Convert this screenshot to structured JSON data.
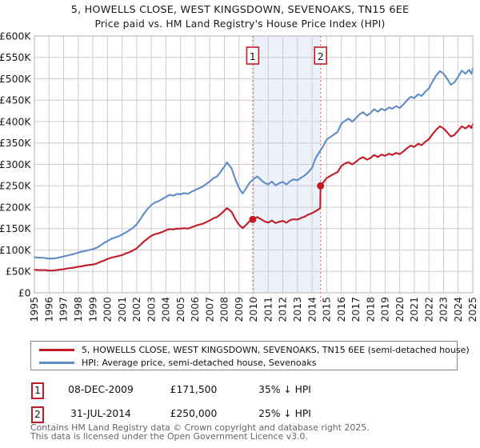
{
  "title": {
    "line1": "5, HOWELLS CLOSE, WEST KINGSDOWN, SEVENOAKS, TN15 6EE",
    "line2": "Price paid vs. HM Land Registry's House Price Index (HPI)"
  },
  "chart_data": {
    "type": "line",
    "xlim": [
      1995,
      2025
    ],
    "ylim": [
      0,
      600
    ],
    "y_unit": "GBP thousands",
    "grid": true,
    "legend_position": "bottom",
    "x_ticks": [
      1995,
      1996,
      1997,
      1998,
      1999,
      2000,
      2001,
      2002,
      2003,
      2004,
      2005,
      2006,
      2007,
      2008,
      2009,
      2010,
      2011,
      2012,
      2013,
      2014,
      2015,
      2016,
      2017,
      2018,
      2019,
      2020,
      2021,
      2022,
      2023,
      2024,
      2025
    ],
    "y_ticks": [
      {
        "v": 0,
        "label": "£0"
      },
      {
        "v": 50,
        "label": "£50K"
      },
      {
        "v": 100,
        "label": "£100K"
      },
      {
        "v": 150,
        "label": "£150K"
      },
      {
        "v": 200,
        "label": "£200K"
      },
      {
        "v": 250,
        "label": "£250K"
      },
      {
        "v": 300,
        "label": "£300K"
      },
      {
        "v": 350,
        "label": "£350K"
      },
      {
        "v": 400,
        "label": "£400K"
      },
      {
        "v": 450,
        "label": "£450K"
      },
      {
        "v": 500,
        "label": "£500K"
      },
      {
        "v": 550,
        "label": "£550K"
      },
      {
        "v": 600,
        "label": "£600K"
      }
    ],
    "colors": {
      "red": "#c21b26",
      "blue": "#5e8cc8",
      "shade": "#edf2fa",
      "dash": "#e57373",
      "grid": "#cccccc",
      "frame": "#b0b0b0",
      "tick_text": "#1a1a1a"
    },
    "series": [
      {
        "id": "price-paid",
        "name": "5, HOWELLS CLOSE, WEST KINGSDOWN, SEVENOAKS, TN15 6EE (semi-detached house)",
        "color": "#c21b26",
        "points": [
          [
            1995,
            54
          ],
          [
            1995.25,
            53
          ],
          [
            1995.5,
            53
          ],
          [
            1995.75,
            53
          ],
          [
            1996,
            52
          ],
          [
            1996.25,
            52
          ],
          [
            1996.5,
            53
          ],
          [
            1996.75,
            54
          ],
          [
            1997,
            55
          ],
          [
            1997.25,
            57
          ],
          [
            1997.5,
            58
          ],
          [
            1997.75,
            59
          ],
          [
            1998,
            61
          ],
          [
            1998.25,
            62
          ],
          [
            1998.5,
            64
          ],
          [
            1998.75,
            65
          ],
          [
            1999,
            66
          ],
          [
            1999.25,
            68
          ],
          [
            1999.5,
            72
          ],
          [
            1999.75,
            75
          ],
          [
            2000,
            79
          ],
          [
            2000.25,
            82
          ],
          [
            2000.5,
            84
          ],
          [
            2000.75,
            86
          ],
          [
            2001,
            88
          ],
          [
            2001.25,
            92
          ],
          [
            2001.5,
            95
          ],
          [
            2001.75,
            99
          ],
          [
            2002,
            104
          ],
          [
            2002.25,
            112
          ],
          [
            2002.5,
            120
          ],
          [
            2002.75,
            127
          ],
          [
            2003,
            133
          ],
          [
            2003.25,
            137
          ],
          [
            2003.5,
            139
          ],
          [
            2003.75,
            142
          ],
          [
            2004,
            146
          ],
          [
            2004.25,
            149
          ],
          [
            2004.5,
            148
          ],
          [
            2004.75,
            150
          ],
          [
            2005,
            150
          ],
          [
            2005.25,
            151
          ],
          [
            2005.5,
            150
          ],
          [
            2005.75,
            153
          ],
          [
            2006,
            156
          ],
          [
            2006.25,
            159
          ],
          [
            2006.5,
            161
          ],
          [
            2006.75,
            165
          ],
          [
            2007,
            169
          ],
          [
            2007.25,
            174
          ],
          [
            2007.5,
            177
          ],
          [
            2007.75,
            184
          ],
          [
            2008,
            192
          ],
          [
            2008.17,
            198
          ],
          [
            2008.33,
            194
          ],
          [
            2008.5,
            189
          ],
          [
            2008.75,
            172
          ],
          [
            2009,
            159
          ],
          [
            2009.25,
            151
          ],
          [
            2009.5,
            159
          ],
          [
            2009.75,
            168
          ],
          [
            2009.94,
            171.5
          ],
          [
            2010,
            173
          ],
          [
            2010.25,
            177
          ],
          [
            2010.5,
            172
          ],
          [
            2010.75,
            167
          ],
          [
            2011,
            164
          ],
          [
            2011.25,
            169
          ],
          [
            2011.5,
            163
          ],
          [
            2011.75,
            166
          ],
          [
            2012,
            168
          ],
          [
            2012.25,
            164
          ],
          [
            2012.5,
            170
          ],
          [
            2012.75,
            172
          ],
          [
            2013,
            171
          ],
          [
            2013.25,
            175
          ],
          [
            2013.5,
            178
          ],
          [
            2013.75,
            183
          ],
          [
            2014,
            186
          ],
          [
            2014.25,
            191
          ],
          [
            2014.5,
            196
          ],
          [
            2014.56,
            199
          ],
          [
            2014.58,
            250
          ],
          [
            2014.75,
            257
          ],
          [
            2015,
            268
          ],
          [
            2015.25,
            273
          ],
          [
            2015.5,
            278
          ],
          [
            2015.75,
            282
          ],
          [
            2016,
            296
          ],
          [
            2016.25,
            302
          ],
          [
            2016.5,
            305
          ],
          [
            2016.75,
            300
          ],
          [
            2017,
            306
          ],
          [
            2017.25,
            313
          ],
          [
            2017.5,
            317
          ],
          [
            2017.75,
            311
          ],
          [
            2018,
            315
          ],
          [
            2018.25,
            322
          ],
          [
            2018.5,
            317
          ],
          [
            2018.75,
            323
          ],
          [
            2019,
            320
          ],
          [
            2019.25,
            325
          ],
          [
            2019.5,
            322
          ],
          [
            2019.75,
            327
          ],
          [
            2020,
            324
          ],
          [
            2020.25,
            330
          ],
          [
            2020.5,
            338
          ],
          [
            2020.75,
            344
          ],
          [
            2021,
            341
          ],
          [
            2021.25,
            348
          ],
          [
            2021.5,
            345
          ],
          [
            2021.75,
            353
          ],
          [
            2022,
            359
          ],
          [
            2022.25,
            371
          ],
          [
            2022.5,
            381
          ],
          [
            2022.75,
            389
          ],
          [
            2023,
            384
          ],
          [
            2023.25,
            375
          ],
          [
            2023.5,
            365
          ],
          [
            2023.75,
            369
          ],
          [
            2024,
            379
          ],
          [
            2024.25,
            389
          ],
          [
            2024.5,
            384
          ],
          [
            2024.75,
            391
          ],
          [
            2024.9,
            385
          ],
          [
            2025,
            394
          ]
        ]
      },
      {
        "id": "hpi",
        "name": "HPI: Average price, semi-detached house, Sevenoaks",
        "color": "#5e8cc8",
        "points": [
          [
            1995,
            83
          ],
          [
            1995.25,
            82
          ],
          [
            1995.5,
            82
          ],
          [
            1995.75,
            81
          ],
          [
            1996,
            80
          ],
          [
            1996.25,
            80
          ],
          [
            1996.5,
            81
          ],
          [
            1996.75,
            83
          ],
          [
            1997,
            85
          ],
          [
            1997.25,
            87
          ],
          [
            1997.5,
            89
          ],
          [
            1997.75,
            91
          ],
          [
            1998,
            94
          ],
          [
            1998.25,
            96
          ],
          [
            1998.5,
            98
          ],
          [
            1998.75,
            100
          ],
          [
            1999,
            102
          ],
          [
            1999.25,
            105
          ],
          [
            1999.5,
            110
          ],
          [
            1999.75,
            116
          ],
          [
            2000,
            121
          ],
          [
            2000.25,
            126
          ],
          [
            2000.5,
            129
          ],
          [
            2000.75,
            132
          ],
          [
            2001,
            136
          ],
          [
            2001.25,
            141
          ],
          [
            2001.5,
            146
          ],
          [
            2001.75,
            152
          ],
          [
            2002,
            160
          ],
          [
            2002.25,
            172
          ],
          [
            2002.5,
            185
          ],
          [
            2002.75,
            196
          ],
          [
            2003,
            205
          ],
          [
            2003.25,
            211
          ],
          [
            2003.5,
            214
          ],
          [
            2003.75,
            219
          ],
          [
            2004,
            224
          ],
          [
            2004.25,
            229
          ],
          [
            2004.5,
            227
          ],
          [
            2004.75,
            231
          ],
          [
            2005,
            230
          ],
          [
            2005.25,
            233
          ],
          [
            2005.5,
            231
          ],
          [
            2005.75,
            236
          ],
          [
            2006,
            240
          ],
          [
            2006.25,
            244
          ],
          [
            2006.5,
            248
          ],
          [
            2006.75,
            254
          ],
          [
            2007,
            260
          ],
          [
            2007.25,
            268
          ],
          [
            2007.5,
            272
          ],
          [
            2007.75,
            283
          ],
          [
            2008,
            295
          ],
          [
            2008.17,
            305
          ],
          [
            2008.33,
            298
          ],
          [
            2008.5,
            290
          ],
          [
            2008.75,
            265
          ],
          [
            2009,
            245
          ],
          [
            2009.25,
            232
          ],
          [
            2009.5,
            245
          ],
          [
            2009.75,
            258
          ],
          [
            2009.94,
            264
          ],
          [
            2010,
            266
          ],
          [
            2010.25,
            272
          ],
          [
            2010.5,
            264
          ],
          [
            2010.75,
            257
          ],
          [
            2011,
            253
          ],
          [
            2011.25,
            260
          ],
          [
            2011.5,
            251
          ],
          [
            2011.75,
            256
          ],
          [
            2012,
            259
          ],
          [
            2012.25,
            253
          ],
          [
            2012.5,
            261
          ],
          [
            2012.75,
            265
          ],
          [
            2013,
            263
          ],
          [
            2013.25,
            269
          ],
          [
            2013.5,
            274
          ],
          [
            2013.75,
            282
          ],
          [
            2014,
            292
          ],
          [
            2014.25,
            315
          ],
          [
            2014.58,
            333
          ],
          [
            2014.75,
            342
          ],
          [
            2015,
            358
          ],
          [
            2015.25,
            364
          ],
          [
            2015.5,
            370
          ],
          [
            2015.75,
            376
          ],
          [
            2016,
            395
          ],
          [
            2016.25,
            402
          ],
          [
            2016.5,
            407
          ],
          [
            2016.75,
            400
          ],
          [
            2017,
            408
          ],
          [
            2017.25,
            417
          ],
          [
            2017.5,
            422
          ],
          [
            2017.75,
            414
          ],
          [
            2018,
            420
          ],
          [
            2018.25,
            429
          ],
          [
            2018.5,
            423
          ],
          [
            2018.75,
            430
          ],
          [
            2019,
            426
          ],
          [
            2019.25,
            433
          ],
          [
            2019.5,
            430
          ],
          [
            2019.75,
            436
          ],
          [
            2020,
            432
          ],
          [
            2020.25,
            440
          ],
          [
            2020.5,
            450
          ],
          [
            2020.75,
            458
          ],
          [
            2021,
            455
          ],
          [
            2021.25,
            464
          ],
          [
            2021.5,
            460
          ],
          [
            2021.75,
            470
          ],
          [
            2022,
            478
          ],
          [
            2022.25,
            494
          ],
          [
            2022.5,
            508
          ],
          [
            2022.75,
            518
          ],
          [
            2023,
            512
          ],
          [
            2023.25,
            500
          ],
          [
            2023.5,
            486
          ],
          [
            2023.75,
            492
          ],
          [
            2024,
            505
          ],
          [
            2024.25,
            519
          ],
          [
            2024.5,
            512
          ],
          [
            2024.75,
            521
          ],
          [
            2024.9,
            512
          ],
          [
            2025,
            524
          ]
        ]
      }
    ],
    "annotations": [
      {
        "n": "1",
        "x": 2009.94,
        "y": 171.5,
        "date": "08-DEC-2009",
        "price": "£171,500",
        "pct": "35% ↓ HPI"
      },
      {
        "n": "2",
        "x": 2014.58,
        "y": 250,
        "date": "31-JUL-2014",
        "price": "£250,000",
        "pct": "25% ↓ HPI"
      }
    ]
  },
  "legend": {
    "items": [
      {
        "label": "5, HOWELLS CLOSE, WEST KINGSDOWN, SEVENOAKS, TN15 6EE (semi-detached house)"
      },
      {
        "label": "HPI: Average price, semi-detached house, Sevenoaks"
      }
    ]
  },
  "footer": {
    "line1": "Contains HM Land Registry data © Crown copyright and database right 2025.",
    "line2": "This data is licensed under the Open Government Licence v3.0."
  }
}
